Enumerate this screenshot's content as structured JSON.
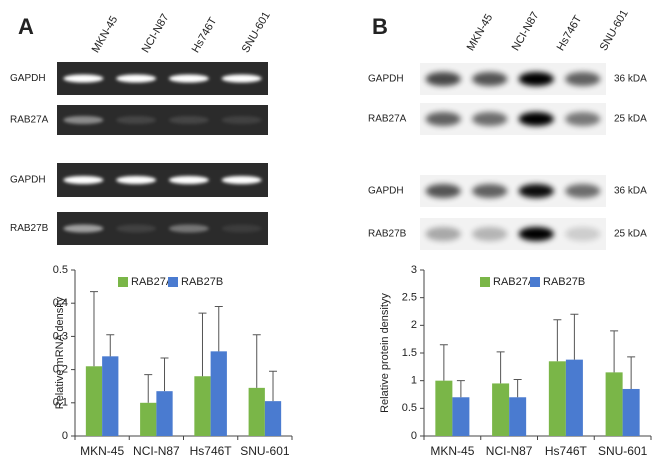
{
  "panels": [
    {
      "label": "A",
      "lanes": [
        "MKN-45",
        "NCI-N87",
        "Hs746T",
        "SNU-601"
      ],
      "rows": [
        {
          "name": "GAPDH"
        },
        {
          "name": "RAB27A"
        },
        {
          "name": "GAPDH"
        },
        {
          "name": "RAB27B"
        }
      ]
    },
    {
      "label": "B",
      "lanes": [
        "MKN-45",
        "NCI-N87",
        "Hs746T",
        "SNU-601"
      ],
      "rows": [
        {
          "name": "GAPDH",
          "size": "36 kDA"
        },
        {
          "name": "RAB27A",
          "size": "25 kDA"
        },
        {
          "name": "GAPDH",
          "size": "36 kDA"
        },
        {
          "name": "RAB27B",
          "size": "25 kDA"
        }
      ]
    }
  ],
  "chart_data": [
    {
      "type": "bar",
      "y_label": "Relative mRNA density",
      "categories": [
        "MKN-45",
        "NCI-N87",
        "Hs746T",
        "SNU-601"
      ],
      "series": [
        {
          "name": "RAB27A",
          "color": "#7ab648",
          "values": [
            0.21,
            0.1,
            0.18,
            0.145
          ],
          "errors": [
            0.225,
            0.085,
            0.19,
            0.16
          ]
        },
        {
          "name": "RAB27B",
          "color": "#4a7bd0",
          "values": [
            0.24,
            0.135,
            0.255,
            0.105
          ],
          "errors": [
            0.065,
            0.1,
            0.135,
            0.09
          ]
        }
      ],
      "ylim": [
        0,
        0.5
      ],
      "yticks": [
        0,
        0.1,
        0.2,
        0.3,
        0.4,
        0.5
      ]
    },
    {
      "type": "bar",
      "y_label": "Relative protein densityy",
      "categories": [
        "MKN-45",
        "NCI-N87",
        "Hs746T",
        "SNU-601"
      ],
      "series": [
        {
          "name": "RAB27A",
          "color": "#7ab648",
          "values": [
            1.0,
            0.95,
            1.35,
            1.15
          ],
          "errors": [
            0.65,
            0.57,
            0.75,
            0.75
          ]
        },
        {
          "name": "RAB27B",
          "color": "#4a7bd0",
          "values": [
            0.7,
            0.7,
            1.38,
            0.85
          ],
          "errors": [
            0.3,
            0.32,
            0.82,
            0.58
          ]
        }
      ],
      "ylim": [
        0,
        3
      ],
      "yticks": [
        0,
        0.5,
        1,
        1.5,
        2,
        2.5,
        3
      ]
    }
  ]
}
